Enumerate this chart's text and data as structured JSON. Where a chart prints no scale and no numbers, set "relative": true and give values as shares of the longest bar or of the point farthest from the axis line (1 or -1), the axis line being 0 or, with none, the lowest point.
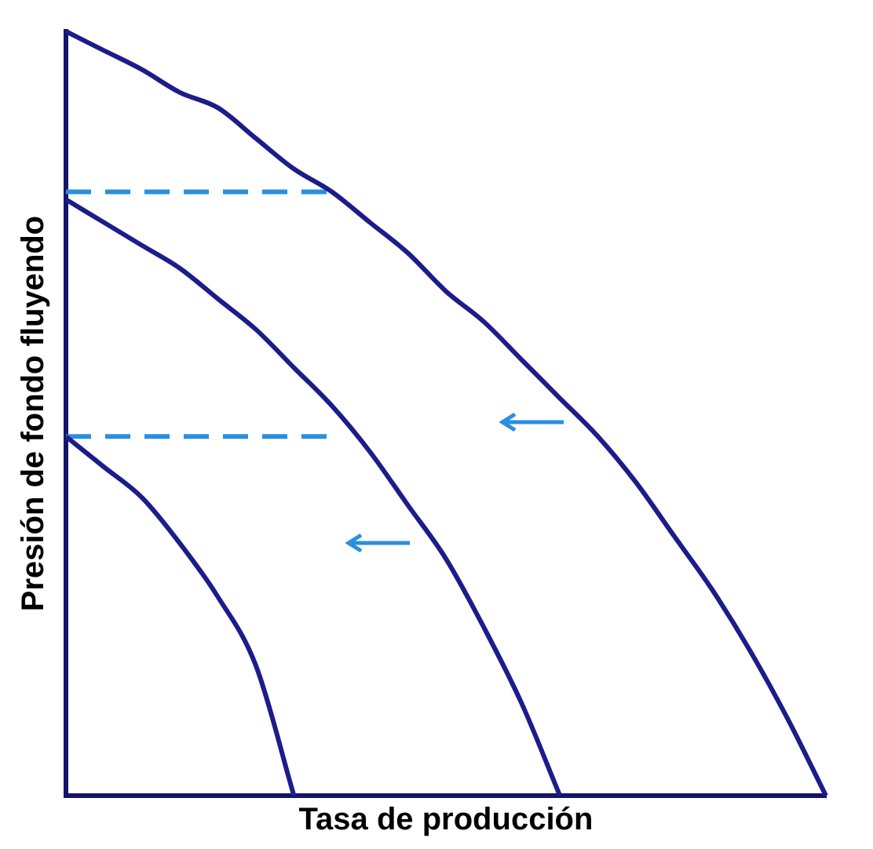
{
  "chart_data": {
    "type": "line",
    "relative": true,
    "xlabel": "Tasa de producción",
    "ylabel": "Presión de fondo fluyendo",
    "marker": "none",
    "legend": false,
    "grid": false,
    "categories": [
      null,
      null,
      null,
      null,
      null,
      null,
      null,
      null,
      null,
      null,
      null,
      null,
      null,
      null,
      null,
      null,
      null,
      null,
      null,
      null,
      null
    ],
    "series": [
      {
        "color": "#1c1c8a",
        "line_style": "solid",
        "values": [
          1,
          0.975,
          0.95,
          0.92,
          0.9,
          0.86,
          0.82,
          0.79,
          0.75,
          0.71,
          0.66,
          0.62,
          0.57,
          0.52,
          0.47,
          0.41,
          0.34,
          0.27,
          0.19,
          0.1,
          0
        ]
      },
      {
        "color": "#1c1c8a",
        "line_style": "solid",
        "values": [
          0.78,
          0.75,
          0.72,
          0.69,
          0.65,
          0.61,
          0.56,
          0.51,
          0.45,
          0.38,
          0.31,
          0.22,
          0.12,
          0,
          null,
          null,
          null,
          null,
          null,
          null,
          null
        ]
      },
      {
        "color": "#1c1c8a",
        "line_style": "solid",
        "values": [
          0.47,
          0.43,
          0.39,
          0.33,
          0.26,
          0.17,
          0,
          null,
          null,
          null,
          null,
          null,
          null,
          null,
          null,
          null,
          null,
          null,
          null,
          null,
          null
        ]
      },
      {
        "color": "#2a8fe0",
        "line_style": "dashed",
        "values": [
          0.79,
          0.79,
          0.79,
          0.79,
          0.79,
          0.79,
          0.79,
          0.79,
          null,
          null,
          null,
          null,
          null,
          null,
          null,
          null,
          null,
          null,
          null,
          null,
          null
        ]
      },
      {
        "color": "#2a8fe0",
        "line_style": "dashed",
        "values": [
          0.47,
          0.47,
          0.47,
          0.47,
          0.47,
          0.47,
          0.47,
          0.47,
          null,
          null,
          null,
          null,
          null,
          null,
          null,
          null,
          null,
          null,
          null,
          null,
          null
        ]
      }
    ]
  }
}
